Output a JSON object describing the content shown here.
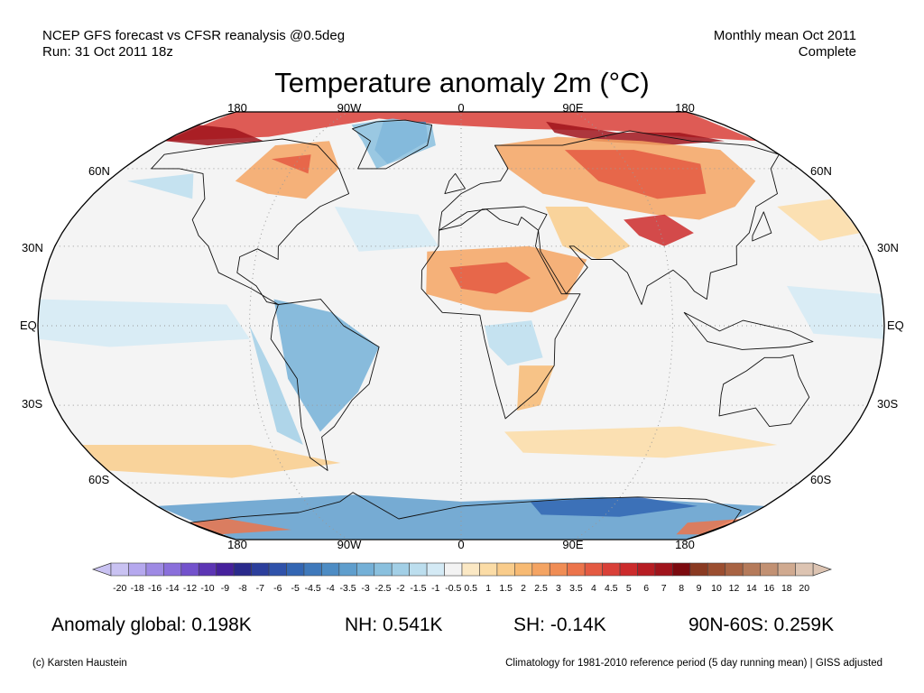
{
  "header": {
    "line1_left": "NCEP GFS forecast vs CFSR reanalysis @0.5deg",
    "line2_left": "Run: 31 Oct 2011 18z",
    "line1_right": "Monthly mean Oct 2011",
    "line2_right": "Complete"
  },
  "title": "Temperature anomaly 2m (°C)",
  "map": {
    "projection": "robinson",
    "longitude_labels_top": [
      "180",
      "90W",
      "0",
      "90E",
      "180"
    ],
    "longitude_labels_bottom": [
      "180",
      "90W",
      "0",
      "90E",
      "180"
    ],
    "latitude_labels_left": [
      "60N",
      "30N",
      "EQ",
      "30S",
      "60S"
    ],
    "latitude_labels_right": [
      "60N",
      "30N",
      "EQ",
      "30S",
      "60S"
    ],
    "ocean_color": "#f4f4f4",
    "border_color": "#000000"
  },
  "colorbar": {
    "ticks": [
      "-20",
      "-18",
      "-16",
      "-14",
      "-12",
      "-10",
      "-9",
      "-8",
      "-7",
      "-6",
      "-5",
      "-4.5",
      "-4",
      "-3.5",
      "-3",
      "-2.5",
      "-2",
      "-1.5",
      "-1",
      "-0.5",
      "0.5",
      "1",
      "1.5",
      "2",
      "2.5",
      "3",
      "3.5",
      "4",
      "4.5",
      "5",
      "6",
      "7",
      "8",
      "9",
      "10",
      "12",
      "14",
      "16",
      "18",
      "20"
    ],
    "colors": [
      "#c9c2f2",
      "#b5a8ee",
      "#9e8ae4",
      "#8a6fdb",
      "#7352cc",
      "#5c35b4",
      "#46219c",
      "#2a2a8c",
      "#2c3f9c",
      "#2f52aa",
      "#3366b3",
      "#3f79bb",
      "#4d8cc4",
      "#5f9ecd",
      "#74b0d7",
      "#8ac0de",
      "#a2cfe6",
      "#bcdeee",
      "#d4eaf5",
      "#f3f3f3",
      "#fbe8c4",
      "#fbdca6",
      "#f9cc8b",
      "#f7ba73",
      "#f4a463",
      "#f08d55",
      "#ec744b",
      "#e45a42",
      "#d94038",
      "#cc2b2c",
      "#b71d23",
      "#a0141c",
      "#7c0a0f",
      "#8a3a22",
      "#9b4e30",
      "#a86343",
      "#b57a5a",
      "#c29173",
      "#d0aa90",
      "#ddc4b2"
    ]
  },
  "stats": {
    "global": "Anomaly global: 0.198K",
    "nh": "NH: 0.541K",
    "sh": "SH: -0.14K",
    "polar": "90N-60S: 0.259K"
  },
  "footer": {
    "credit": "(c) Karsten Haustein",
    "note": "Climatology for 1981-2010 reference period (5 day running mean) | GISS adjusted"
  }
}
